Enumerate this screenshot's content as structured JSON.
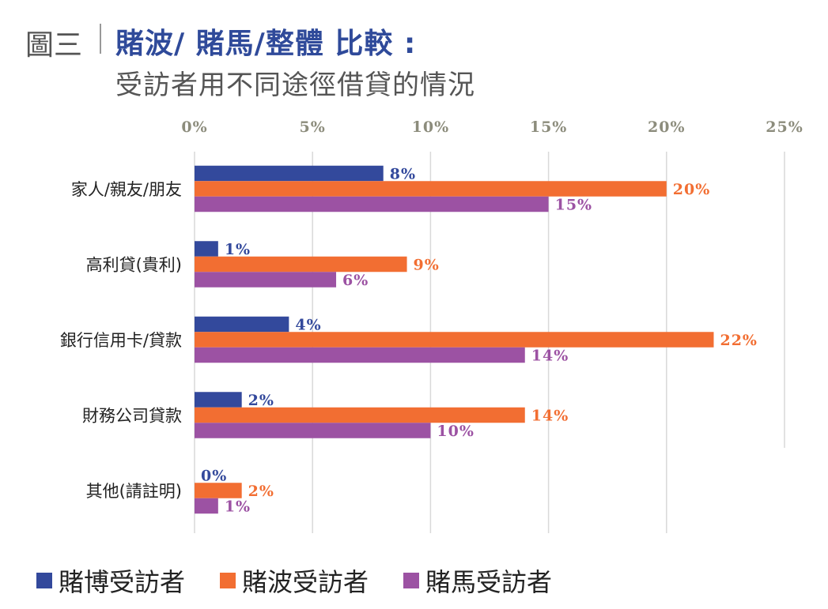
{
  "figure_label": "圖三",
  "title": "賭波/  賭馬/整體  比較  :",
  "subtitle": "受訪者用不同途徑借貸的情況",
  "chart_data": {
    "type": "bar",
    "orientation": "horizontal",
    "title": "賭波/ 賭馬/整體 比較 : 受訪者用不同途徑借貸的情況",
    "categories": [
      "家人/親友/朋友",
      "高利貸(貴利)",
      "銀行信用卡/貸款",
      "財務公司貸款",
      "其他(請註明)"
    ],
    "series": [
      {
        "name": "賭博受訪者",
        "color": "#33499c",
        "values": [
          8,
          1,
          4,
          2,
          0
        ]
      },
      {
        "name": "賭波受訪者",
        "color": "#f26e32",
        "values": [
          20,
          9,
          22,
          14,
          2
        ]
      },
      {
        "name": "賭馬受訪者",
        "color": "#9c52a3",
        "values": [
          15,
          6,
          14,
          10,
          1
        ]
      }
    ],
    "xlim": [
      0,
      25
    ],
    "xticks": [
      "0%",
      "5%",
      "10%",
      "15%",
      "20%",
      "25%"
    ],
    "xtick_values": [
      0,
      5,
      10,
      15,
      20,
      25
    ],
    "axis_position": "top",
    "grid": true,
    "legend_position": "bottom",
    "value_suffix": "%"
  }
}
